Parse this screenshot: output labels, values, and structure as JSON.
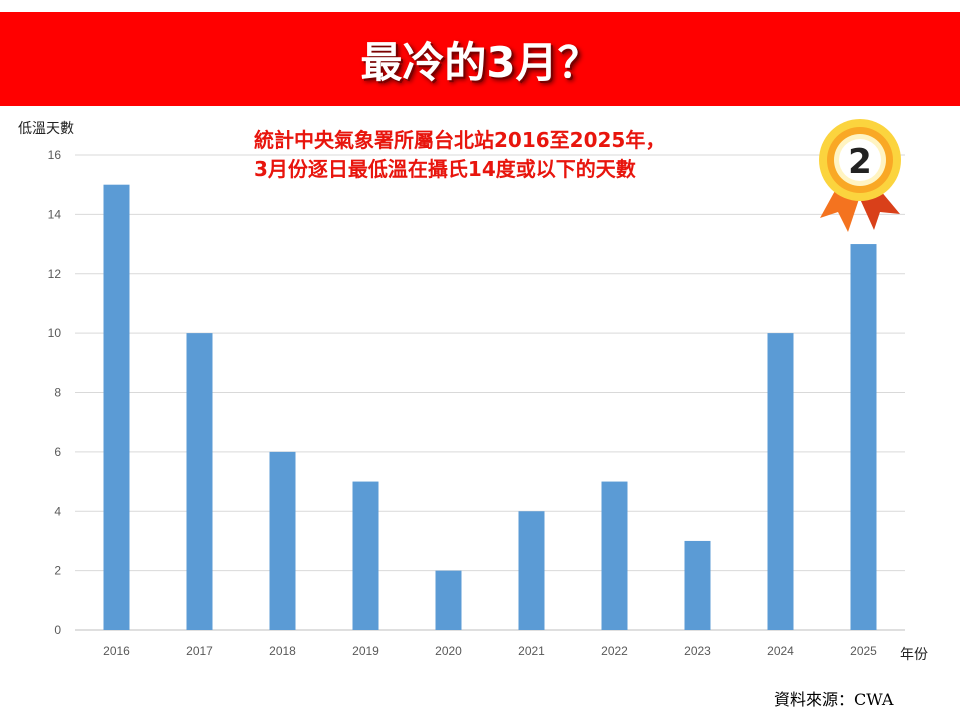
{
  "banner": {
    "title": "最冷的3月？",
    "color": "#ff0000"
  },
  "subtitle": {
    "line1": "統計中央氣象署所屬台北站2016至2025年，",
    "line2": "3月份逐日最低溫在攝氏14度或以下的天數",
    "color": "#e8150d"
  },
  "source": {
    "label": "資料來源：",
    "value": "CWA"
  },
  "badge": {
    "icon": "second-place-medal-icon",
    "text": "2"
  },
  "chart_data": {
    "type": "bar",
    "categories": [
      "2016",
      "2017",
      "2018",
      "2019",
      "2020",
      "2021",
      "2022",
      "2023",
      "2024",
      "2025"
    ],
    "values": [
      15,
      10,
      6,
      5,
      2,
      4,
      5,
      3,
      10,
      13
    ],
    "ylabel": "低溫天數",
    "xlabel": "年份",
    "ylim": [
      0,
      16
    ],
    "yticks": [
      0,
      2,
      4,
      6,
      8,
      10,
      12,
      14,
      16
    ],
    "grid": true,
    "bar_color": "#5b9bd5"
  }
}
